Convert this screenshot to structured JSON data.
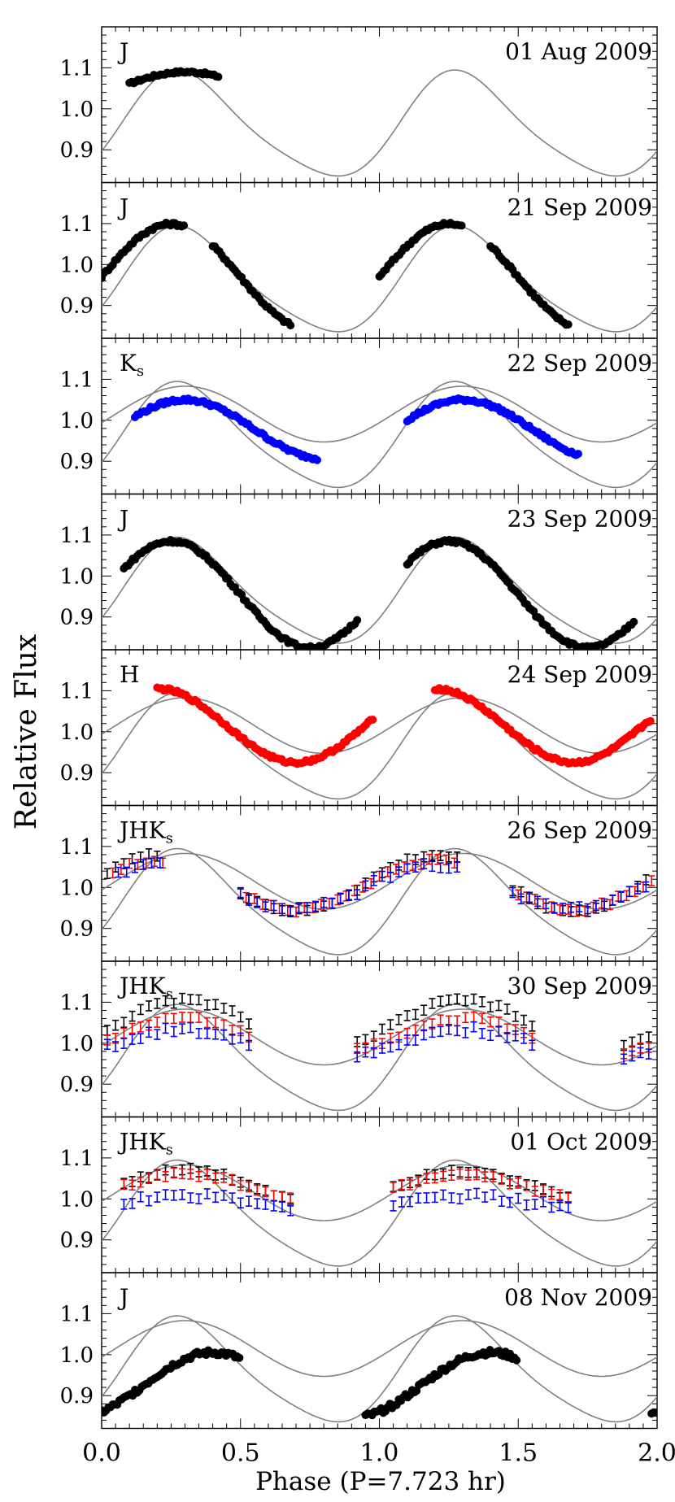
{
  "ylabel": "Relative Flux",
  "xlabel": "Phase (P=7.723 hr)",
  "xticks": [
    "0.0",
    "0.5",
    "1.0",
    "1.5",
    "2.0"
  ],
  "yticks": [
    "0.9",
    "1.0",
    "1.1"
  ],
  "colors": {
    "J": "#000000",
    "H": "#ff0000",
    "Ks": "#0000ff",
    "model": "#808080"
  },
  "chart_data": [
    {
      "type": "scatter",
      "band": "J",
      "band_sub": "",
      "date": "01 Aug 2009",
      "models": [
        "single"
      ],
      "xlim": [
        0,
        2
      ],
      "ylim": [
        0.82,
        1.2
      ],
      "series": [
        {
          "name": "J",
          "color": "#000000",
          "style": "dots",
          "phase_range": [
            [
              0.1,
              0.42
            ]
          ],
          "amp": 0.042,
          "center": 1.048,
          "phase_offset": 0.05,
          "scatter": 0.003
        }
      ]
    },
    {
      "type": "scatter",
      "band": "J",
      "band_sub": "",
      "date": "21 Sep 2009",
      "models": [
        "single"
      ],
      "xlim": [
        0,
        2
      ],
      "ylim": [
        0.82,
        1.2
      ],
      "series": [
        {
          "name": "J",
          "color": "#000000",
          "style": "dots",
          "phase_range": [
            [
              0.0,
              0.3
            ],
            [
              0.4,
              0.68
            ],
            [
              1.0,
              1.3
            ],
            [
              1.4,
              1.68
            ]
          ],
          "amp": 0.129,
          "center": 0.97,
          "phase_offset": 0.0,
          "scatter": 0.004
        }
      ]
    },
    {
      "type": "scatter",
      "band": "K",
      "band_sub": "s",
      "date": "22 Sep 2009",
      "models": [
        "single",
        "double"
      ],
      "xlim": [
        0,
        2
      ],
      "ylim": [
        0.82,
        1.2
      ],
      "series": [
        {
          "name": "Ks",
          "color": "#0000ff",
          "style": "dots",
          "phase_range": [
            [
              0.12,
              0.78
            ],
            [
              1.1,
              1.72
            ]
          ],
          "amp": 0.072,
          "center": 0.978,
          "phase_offset": 0.05,
          "scatter": 0.004
        }
      ]
    },
    {
      "type": "scatter",
      "band": "J",
      "band_sub": "",
      "date": "23 Sep 2009",
      "models": [
        "single"
      ],
      "xlim": [
        0,
        2
      ],
      "ylim": [
        0.82,
        1.2
      ],
      "series": [
        {
          "name": "J",
          "color": "#000000",
          "style": "dots",
          "phase_range": [
            [
              0.08,
              0.92
            ],
            [
              1.1,
              1.92
            ]
          ],
          "amp": 0.13,
          "center": 0.955,
          "phase_offset": 0.0,
          "scatter": 0.004
        }
      ]
    },
    {
      "type": "scatter",
      "band": "H",
      "band_sub": "",
      "date": "24 Sep 2009",
      "models": [
        "single",
        "double"
      ],
      "xlim": [
        0,
        2
      ],
      "ylim": [
        0.82,
        1.2
      ],
      "series": [
        {
          "name": "H",
          "color": "#ff0000",
          "style": "dots",
          "phase_range": [
            [
              0.2,
              0.98
            ],
            [
              1.2,
              1.98
            ]
          ],
          "amp": 0.09,
          "center": 1.015,
          "phase_offset": -0.05,
          "scatter": 0.004
        }
      ]
    },
    {
      "type": "scatter",
      "band": "JHK",
      "band_sub": "s",
      "date": "26 Sep 2009",
      "models": [
        "single",
        "double"
      ],
      "xlim": [
        0,
        2
      ],
      "ylim": [
        0.82,
        1.2
      ],
      "series": [
        {
          "name": "J",
          "color": "#000000",
          "style": "err",
          "phase_range": [
            [
              0.02,
              0.22
            ],
            [
              0.5,
              1.28
            ],
            [
              1.48,
              1.98
            ]
          ],
          "amp": 0.068,
          "center": 1.01,
          "phase_offset": -0.05,
          "scatter": 0.006
        },
        {
          "name": "H",
          "color": "#ff0000",
          "style": "err",
          "phase_range": [
            [
              0.04,
              0.22
            ],
            [
              0.52,
              1.28
            ],
            [
              1.5,
              1.98
            ]
          ],
          "amp": 0.06,
          "center": 1.005,
          "phase_offset": -0.05,
          "scatter": 0.006
        },
        {
          "name": "Ks",
          "color": "#0000ff",
          "style": "err",
          "phase_range": [
            [
              0.06,
              0.22
            ],
            [
              0.5,
              1.28
            ],
            [
              1.48,
              1.98
            ]
          ],
          "amp": 0.055,
          "center": 1.0,
          "phase_offset": -0.05,
          "scatter": 0.008
        }
      ]
    },
    {
      "type": "scatter",
      "band": "JHK",
      "band_sub": "s",
      "date": "30 Sep 2009",
      "models": [
        "single",
        "double"
      ],
      "xlim": [
        0,
        2
      ],
      "ylim": [
        0.82,
        1.2
      ],
      "series": [
        {
          "name": "J",
          "color": "#000000",
          "style": "err",
          "phase_range": [
            [
              0.02,
              0.55
            ],
            [
              0.92,
              1.55
            ],
            [
              1.88,
              1.98
            ]
          ],
          "amp": 0.06,
          "center": 1.045,
          "phase_offset": 0.05,
          "scatter": 0.006
        },
        {
          "name": "H",
          "color": "#ff0000",
          "style": "err",
          "phase_range": [
            [
              0.02,
              0.55
            ],
            [
              0.92,
              1.55
            ],
            [
              1.88,
              1.98
            ]
          ],
          "amp": 0.045,
          "center": 1.015,
          "phase_offset": 0.05,
          "scatter": 0.006
        },
        {
          "name": "Ks",
          "color": "#0000ff",
          "style": "err",
          "phase_range": [
            [
              0.02,
              0.55
            ],
            [
              0.92,
              1.55
            ],
            [
              1.88,
              1.98
            ]
          ],
          "amp": 0.035,
          "center": 0.998,
          "phase_offset": 0.05,
          "scatter": 0.008
        }
      ]
    },
    {
      "type": "scatter",
      "band": "JHK",
      "band_sub": "s",
      "date": "01 Oct 2009",
      "models": [
        "single",
        "double"
      ],
      "xlim": [
        0,
        2
      ],
      "ylim": [
        0.82,
        1.2
      ],
      "series": [
        {
          "name": "J",
          "color": "#000000",
          "style": "err",
          "phase_range": [
            [
              0.08,
              0.68
            ],
            [
              1.05,
              1.68
            ]
          ],
          "amp": 0.04,
          "center": 1.03,
          "phase_offset": 0.05,
          "scatter": 0.006
        },
        {
          "name": "H",
          "color": "#ff0000",
          "style": "err",
          "phase_range": [
            [
              0.08,
              0.68
            ],
            [
              1.05,
              1.68
            ]
          ],
          "amp": 0.035,
          "center": 1.025,
          "phase_offset": 0.05,
          "scatter": 0.006
        },
        {
          "name": "Ks",
          "color": "#0000ff",
          "style": "err",
          "phase_range": [
            [
              0.08,
              0.68
            ],
            [
              1.05,
              1.68
            ]
          ],
          "amp": 0.018,
          "center": 0.99,
          "phase_offset": 0.05,
          "scatter": 0.008
        }
      ]
    },
    {
      "type": "scatter",
      "band": "J",
      "band_sub": "",
      "date": "08 Nov 2009",
      "models": [
        "single",
        "double"
      ],
      "xlim": [
        0,
        2
      ],
      "ylim": [
        0.82,
        1.2
      ],
      "series": [
        {
          "name": "J",
          "color": "#000000",
          "style": "dots",
          "phase_range": [
            [
              0.0,
              0.5
            ],
            [
              0.95,
              1.5
            ],
            [
              1.98,
              2.0
            ]
          ],
          "amp": 0.08,
          "center": 0.925,
          "phase_offset": 0.15,
          "scatter": 0.007
        }
      ]
    }
  ]
}
